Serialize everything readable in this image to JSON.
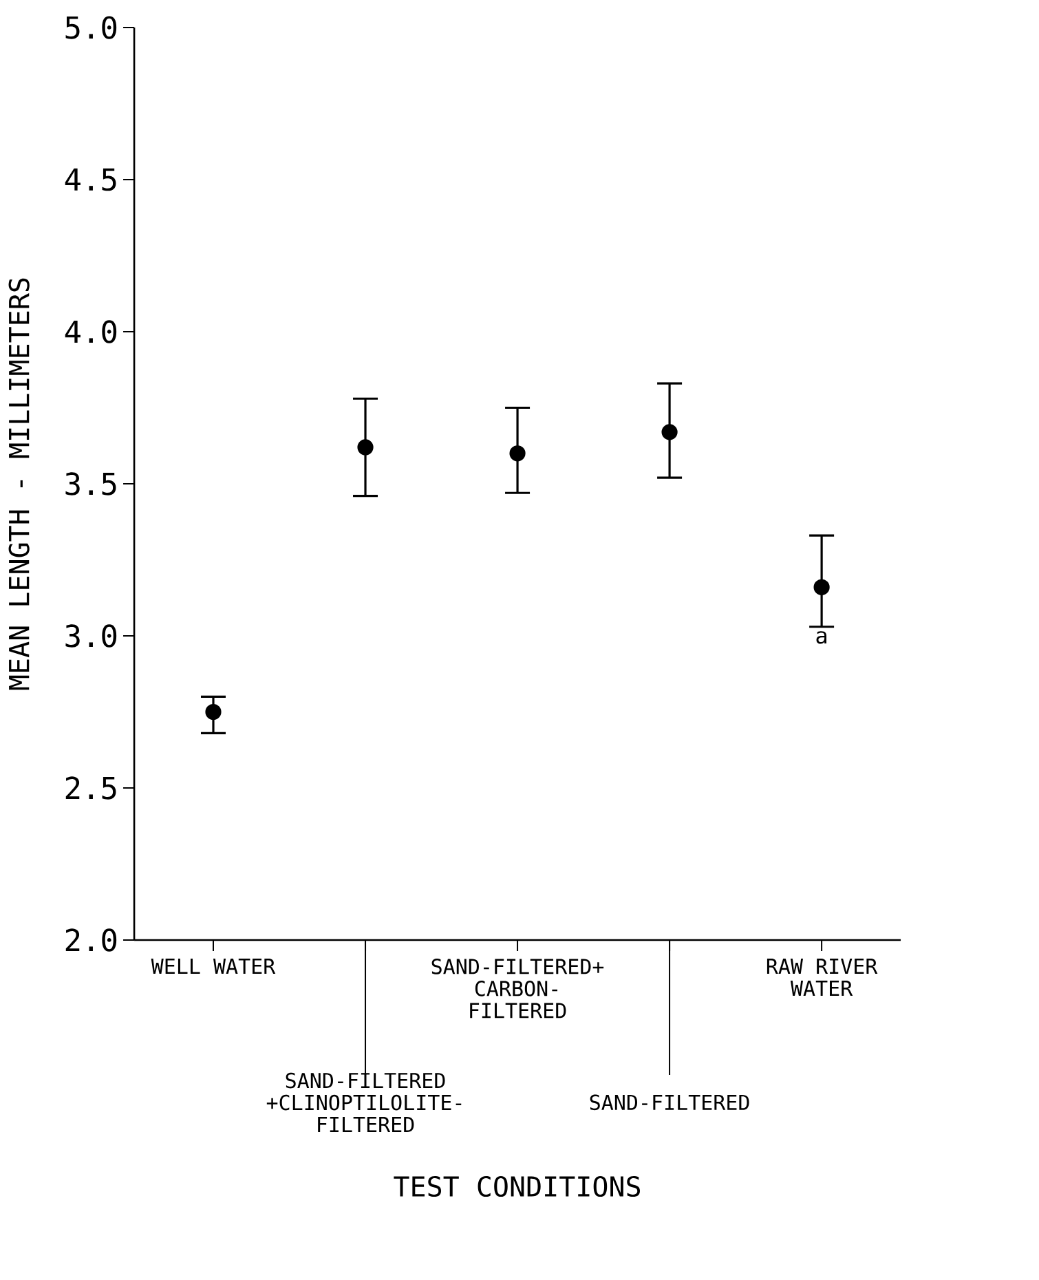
{
  "chart_data": {
    "type": "scatter",
    "xlabel": "TEST CONDITIONS",
    "ylabel": "MEAN LENGTH - MILLIMETERS",
    "categories": [
      "WELL WATER",
      "SAND-FILTERED +CLINOPTILOLITE-FILTERED",
      "SAND-FILTERED+ CARBON-FILTERED",
      "SAND-FILTERED",
      "RAW RIVER WATER"
    ],
    "series": [
      {
        "color": "#000000",
        "values": [
          2.75,
          3.62,
          3.6,
          3.67,
          3.16
        ],
        "errors": [
          [
            2.68,
            2.8
          ],
          [
            3.46,
            3.78
          ],
          [
            3.47,
            3.75
          ],
          [
            3.52,
            3.83
          ],
          [
            3.03,
            3.33
          ]
        ]
      }
    ],
    "marker": "circle",
    "ylim": [
      2.0,
      5.0
    ],
    "yticks": [
      {
        "value": 2.0,
        "label": "2.0"
      },
      {
        "value": 2.5,
        "label": "2.5"
      },
      {
        "value": 3.0,
        "label": "3.0"
      },
      {
        "value": 3.5,
        "label": "3.5"
      },
      {
        "value": 4.0,
        "label": "4.0"
      },
      {
        "value": 4.5,
        "label": "4.5"
      },
      {
        "value": 5.0,
        "label": "5.0"
      }
    ],
    "annotations": [
      {
        "text": "a",
        "x": "RAW RIVER WATER",
        "y": 3.03
      }
    ],
    "grid": false
  }
}
